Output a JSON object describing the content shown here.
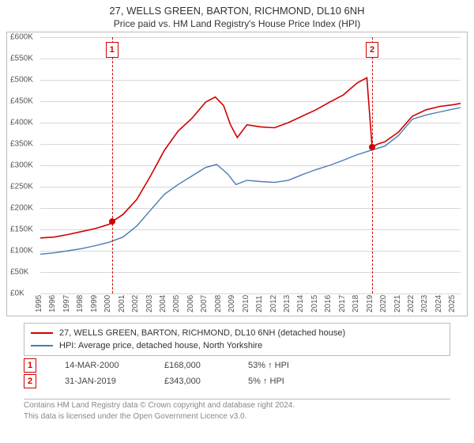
{
  "title": "27, WELLS GREEN, BARTON, RICHMOND, DL10 6NH",
  "subtitle": "Price paid vs. HM Land Registry's House Price Index (HPI)",
  "chart": {
    "type": "line",
    "x_range": [
      1995,
      2025.5
    ],
    "x_ticks": [
      1995,
      1996,
      1997,
      1998,
      1999,
      2000,
      2001,
      2002,
      2003,
      2004,
      2005,
      2006,
      2007,
      2008,
      2009,
      2010,
      2011,
      2012,
      2013,
      2014,
      2015,
      2016,
      2017,
      2018,
      2019,
      2020,
      2021,
      2022,
      2023,
      2024,
      2025
    ],
    "y_range_k": [
      0,
      600
    ],
    "y_ticks_k": [
      0,
      50,
      100,
      150,
      200,
      250,
      300,
      350,
      400,
      450,
      500,
      550,
      600
    ],
    "y_tick_prefix": "£",
    "y_tick_suffix": "K",
    "grid_color": "#d8d8d8",
    "border_color": "#bcbcbc",
    "background_color": "#ffffff",
    "tick_font_size": 10,
    "tick_color": "#555555",
    "series": [
      {
        "id": "price-paid",
        "label": "27, WELLS GREEN, BARTON, RICHMOND, DL10 6NH (detached house)",
        "color": "#d10000",
        "line_width": 1.6,
        "points_xy_k": [
          [
            1995.0,
            130
          ],
          [
            1996.0,
            132
          ],
          [
            1997.0,
            138
          ],
          [
            1998.0,
            145
          ],
          [
            1999.0,
            152
          ],
          [
            2000.0,
            162
          ],
          [
            2000.2,
            168
          ],
          [
            2001.0,
            185
          ],
          [
            2002.0,
            220
          ],
          [
            2003.0,
            275
          ],
          [
            2004.0,
            335
          ],
          [
            2005.0,
            380
          ],
          [
            2006.0,
            410
          ],
          [
            2007.0,
            448
          ],
          [
            2007.7,
            460
          ],
          [
            2008.3,
            440
          ],
          [
            2008.8,
            395
          ],
          [
            2009.3,
            365
          ],
          [
            2010.0,
            395
          ],
          [
            2011.0,
            390
          ],
          [
            2012.0,
            388
          ],
          [
            2013.0,
            400
          ],
          [
            2014.0,
            415
          ],
          [
            2015.0,
            430
          ],
          [
            2016.0,
            448
          ],
          [
            2017.0,
            465
          ],
          [
            2018.0,
            493
          ],
          [
            2018.7,
            505
          ],
          [
            2019.08,
            343
          ],
          [
            2019.5,
            350
          ],
          [
            2020.0,
            355
          ],
          [
            2021.0,
            378
          ],
          [
            2022.0,
            415
          ],
          [
            2023.0,
            430
          ],
          [
            2024.0,
            438
          ],
          [
            2025.0,
            442
          ],
          [
            2025.5,
            445
          ]
        ]
      },
      {
        "id": "hpi",
        "label": "HPI: Average price, detached house, North Yorkshire",
        "color": "#4a7bb5",
        "line_width": 1.4,
        "points_xy_k": [
          [
            1995.0,
            92
          ],
          [
            1996.0,
            95
          ],
          [
            1997.0,
            100
          ],
          [
            1998.0,
            105
          ],
          [
            1999.0,
            112
          ],
          [
            2000.0,
            120
          ],
          [
            2001.0,
            132
          ],
          [
            2002.0,
            158
          ],
          [
            2003.0,
            195
          ],
          [
            2004.0,
            232
          ],
          [
            2005.0,
            255
          ],
          [
            2006.0,
            275
          ],
          [
            2007.0,
            295
          ],
          [
            2007.8,
            302
          ],
          [
            2008.6,
            280
          ],
          [
            2009.2,
            255
          ],
          [
            2010.0,
            265
          ],
          [
            2011.0,
            262
          ],
          [
            2012.0,
            260
          ],
          [
            2013.0,
            265
          ],
          [
            2014.0,
            278
          ],
          [
            2015.0,
            290
          ],
          [
            2016.0,
            300
          ],
          [
            2017.0,
            312
          ],
          [
            2018.0,
            325
          ],
          [
            2019.0,
            335
          ],
          [
            2020.0,
            345
          ],
          [
            2021.0,
            370
          ],
          [
            2022.0,
            408
          ],
          [
            2023.0,
            418
          ],
          [
            2024.0,
            425
          ],
          [
            2025.0,
            432
          ],
          [
            2025.5,
            435
          ]
        ]
      }
    ],
    "events": [
      {
        "n": "1",
        "x": 2000.2,
        "y_k": 168,
        "date": "14-MAR-2000",
        "price": "£168,000",
        "pct": "53% ↑ HPI"
      },
      {
        "n": "2",
        "x": 2019.08,
        "y_k": 343,
        "date": "31-JAN-2019",
        "price": "£343,000",
        "pct": "5% ↑ HPI"
      }
    ],
    "event_line_color": "#d10000",
    "event_dot_color": "#d10000"
  },
  "footer": {
    "line1": "Contains HM Land Registry data © Crown copyright and database right 2024.",
    "line2": "This data is licensed under the Open Government Licence v3.0."
  }
}
